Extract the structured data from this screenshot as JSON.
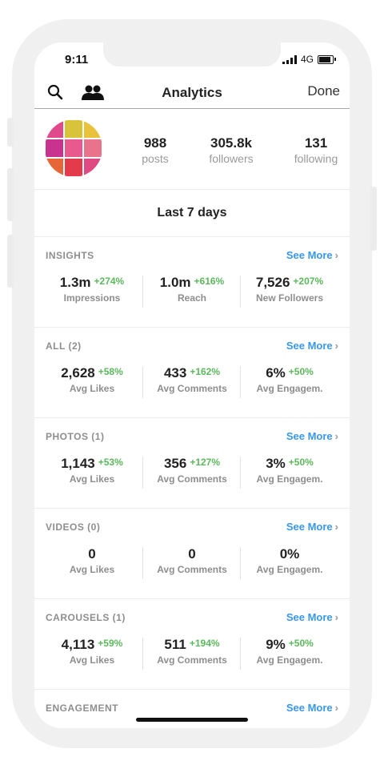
{
  "status_bar": {
    "time": "9:11",
    "network": "4G"
  },
  "nav": {
    "title": "Analytics",
    "done_label": "Done"
  },
  "profile": {
    "posts": {
      "value": "988",
      "label": "posts"
    },
    "followers": {
      "value": "305.8k",
      "label": "followers"
    },
    "following": {
      "value": "131",
      "label": "following"
    },
    "avatar_colors": [
      "#e04a8c",
      "#d8c33a",
      "#e8c23a",
      "#c8338f",
      "#e85a8e",
      "#e8738a",
      "#e6663a",
      "#e33a4c",
      "#e04a82"
    ]
  },
  "period_label": "Last 7 days",
  "see_more_label": "See More",
  "chevron": "›",
  "sections": [
    {
      "title": "INSIGHTS",
      "metrics": [
        {
          "value": "1.3m",
          "change": "+274%",
          "label": "Impressions"
        },
        {
          "value": "1.0m",
          "change": "+616%",
          "label": "Reach"
        },
        {
          "value": "7,526",
          "change": "+207%",
          "label": "New Followers"
        }
      ]
    },
    {
      "title": "ALL (2)",
      "metrics": [
        {
          "value": "2,628",
          "change": "+58%",
          "label": "Avg Likes"
        },
        {
          "value": "433",
          "change": "+162%",
          "label": "Avg Comments"
        },
        {
          "value": "6%",
          "change": "+50%",
          "label": "Avg Engagem."
        }
      ]
    },
    {
      "title": "PHOTOS (1)",
      "metrics": [
        {
          "value": "1,143",
          "change": "+53%",
          "label": "Avg Likes"
        },
        {
          "value": "356",
          "change": "+127%",
          "label": "Avg Comments"
        },
        {
          "value": "3%",
          "change": "+50%",
          "label": "Avg Engagem."
        }
      ]
    },
    {
      "title": "VIDEOS (0)",
      "metrics": [
        {
          "value": "0",
          "change": "",
          "label": "Avg Likes"
        },
        {
          "value": "0",
          "change": "",
          "label": "Avg Comments"
        },
        {
          "value": "0%",
          "change": "",
          "label": "Avg Engagem."
        }
      ]
    },
    {
      "title": "CAROUSELS (1)",
      "metrics": [
        {
          "value": "4,113",
          "change": "+59%",
          "label": "Avg Likes"
        },
        {
          "value": "511",
          "change": "+194%",
          "label": "Avg Comments"
        },
        {
          "value": "9%",
          "change": "+50%",
          "label": "Avg Engagem."
        }
      ]
    },
    {
      "title": "ENGAGEMENT",
      "metrics": []
    }
  ],
  "colors": {
    "accent": "#3897f0",
    "positive": "#5cb85c",
    "muted": "#8e8e8e"
  },
  "icons": [
    "search-icon",
    "people-icon",
    "signal-icon",
    "battery-icon",
    "chevron-right-icon"
  ]
}
